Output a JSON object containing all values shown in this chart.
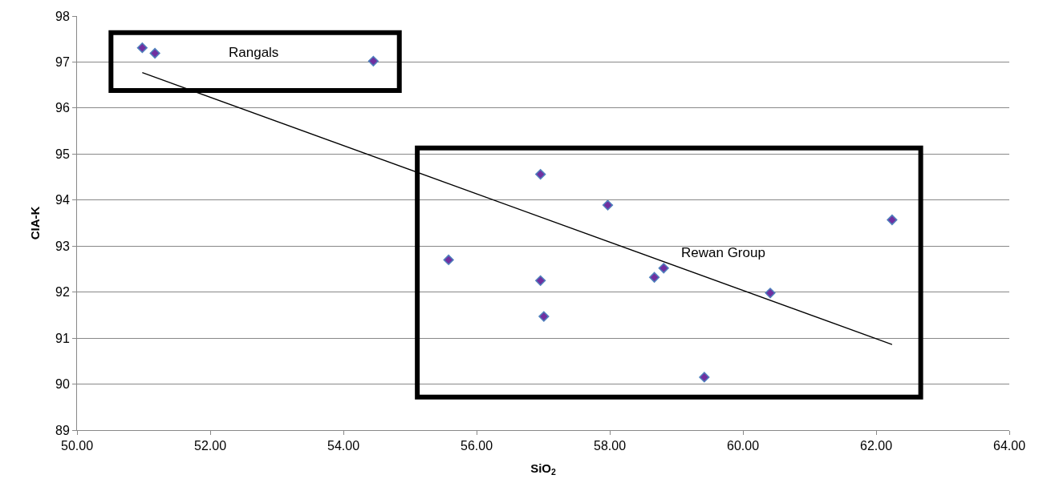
{
  "chart_data": {
    "type": "scatter",
    "xlabel": "SiO$_{2}$",
    "ylabel": "CIA-K",
    "series": [
      {
        "color": "#7030a0",
        "x": [
          50.98,
          51.17,
          54.45,
          55.58,
          56.96,
          56.96,
          57.01,
          57.97,
          58.67,
          58.81,
          59.42,
          60.41,
          62.24
        ],
        "values": [
          97.31,
          97.19,
          97.02,
          92.7,
          94.56,
          92.25,
          91.47,
          93.89,
          92.32,
          92.52,
          90.15,
          91.98,
          93.57
        ]
      },
      {
        "type": "line",
        "color": "#000000",
        "x": [
          50.98,
          62.24
        ],
        "values": [
          96.77,
          90.86
        ],
        "marker": "none"
      }
    ],
    "marker": "diamond",
    "grid": "y",
    "xlim": [
      50,
      64
    ],
    "xticks": [
      {
        "value": 50,
        "label": "50.00"
      },
      {
        "value": 52,
        "label": "52.00"
      },
      {
        "value": 54,
        "label": "54.00"
      },
      {
        "value": 56,
        "label": "56.00"
      },
      {
        "value": 58,
        "label": "58.00"
      },
      {
        "value": 60,
        "label": "60.00"
      },
      {
        "value": 62,
        "label": "62.00"
      },
      {
        "value": 64,
        "label": "64.00"
      }
    ],
    "ylim": [
      89,
      98
    ],
    "yticks": [
      89,
      90,
      91,
      92,
      93,
      94,
      95,
      96,
      97,
      98
    ],
    "annotations": [
      "Rangals",
      "Rewan Group"
    ]
  }
}
